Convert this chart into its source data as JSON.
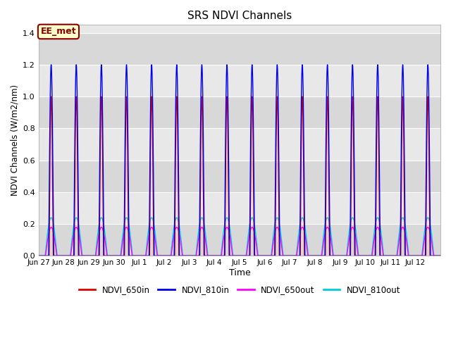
{
  "title": "SRS NDVI Channels",
  "xlabel": "Time",
  "ylabel": "NDVI Channels (W/m2/nm)",
  "ylim": [
    0,
    1.45
  ],
  "fig_bg": "#ffffff",
  "plot_bg_light": "#e8e8e8",
  "plot_bg_dark": "#d0d0d0",
  "annotation_text": "EE_met",
  "annotation_bg": "#ffffcc",
  "annotation_border": "#8b0000",
  "channels": {
    "NDVI_650in": {
      "color": "#dd0000",
      "lw": 1.0
    },
    "NDVI_810in": {
      "color": "#0000ee",
      "lw": 1.0
    },
    "NDVI_650out": {
      "color": "#ff00ff",
      "lw": 1.0
    },
    "NDVI_810out": {
      "color": "#00ccdd",
      "lw": 1.0
    }
  },
  "tick_labels": [
    "Jun 27",
    "Jun 28",
    "Jun 29",
    "Jun 30",
    "Jul 1",
    "Jul 2",
    "Jul 3",
    "Jul 4",
    "Jul 5",
    "Jul 6",
    "Jul 7",
    "Jul 8",
    "Jul 9",
    "Jul 10",
    "Jul 11",
    "Jul 12"
  ],
  "num_days": 16,
  "points_per_day": 500
}
